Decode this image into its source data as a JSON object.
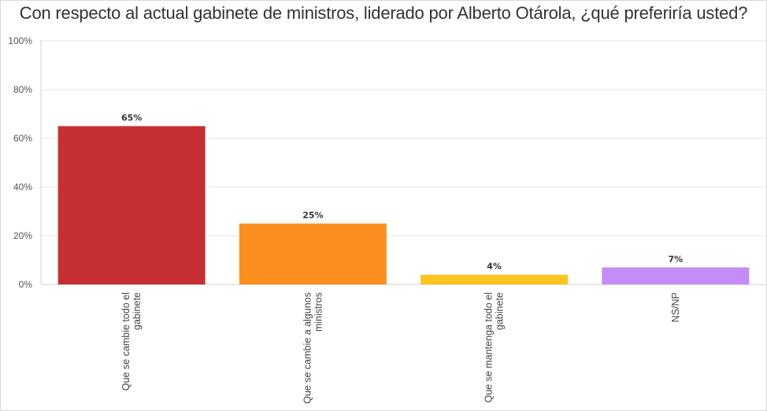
{
  "chart_data": {
    "type": "bar",
    "title": "Con respecto al actual gabinete de ministros, liderado por Alberto Otárola, ¿qué preferiría usted?",
    "xlabel": "",
    "ylabel": "",
    "ylim": [
      0,
      100
    ],
    "yticks": [
      "0%",
      "20%",
      "40%",
      "60%",
      "80%",
      "100%"
    ],
    "grid": true,
    "categories": [
      [
        "Que se cambie todo el",
        "gabinete"
      ],
      [
        "Que se cambie a algunos",
        "ministros"
      ],
      [
        "Que se mantenga todo el",
        "gabinete"
      ],
      [
        "NS/NP"
      ]
    ],
    "values": [
      65,
      25,
      4,
      7
    ],
    "data_labels": [
      "65%",
      "25%",
      "4%",
      "7%"
    ],
    "colors": [
      "#c62f32",
      "#fb8f1d",
      "#fbc51f",
      "#c48cf8"
    ]
  }
}
